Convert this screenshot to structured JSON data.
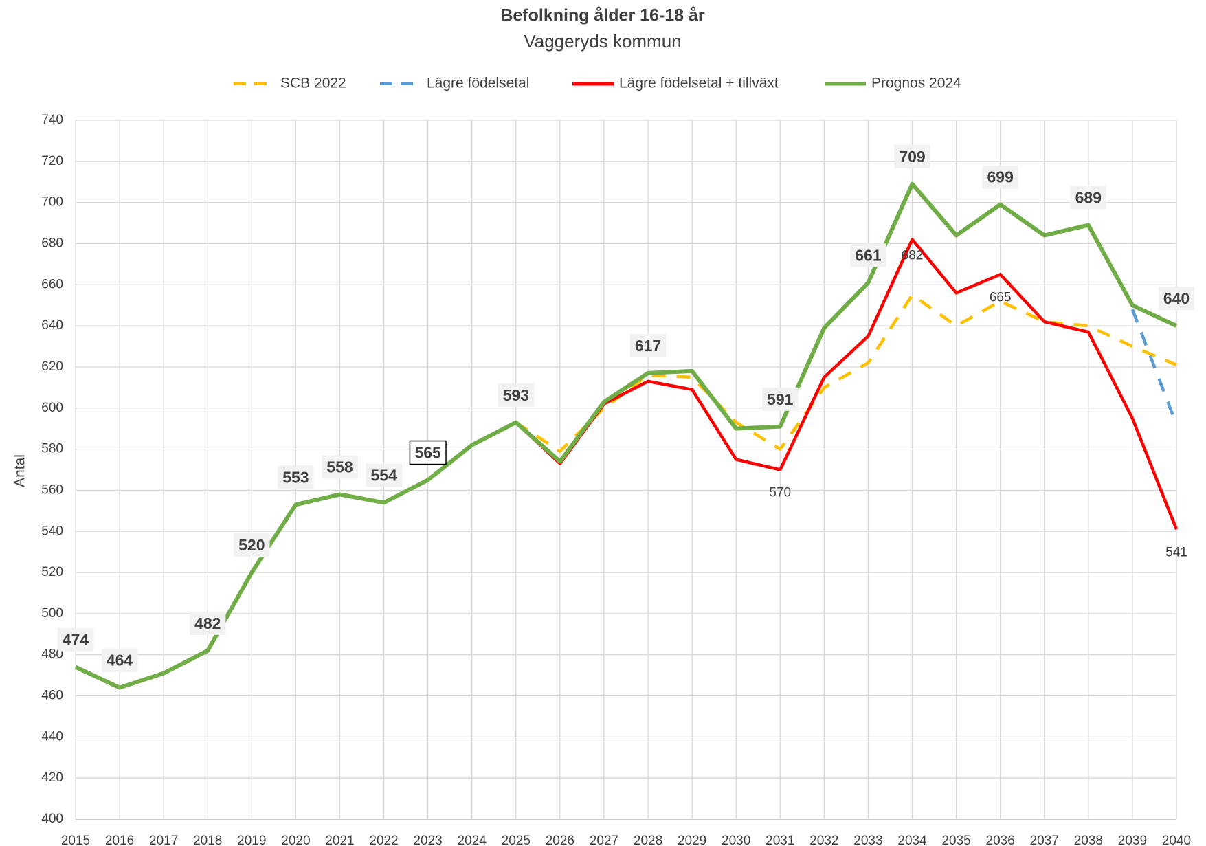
{
  "chart_data": {
    "type": "line",
    "title": "Befolkning ålder 16-18 år",
    "subtitle": "Vaggeryds kommun",
    "y_label": "Antal",
    "categories": [
      "2015",
      "2016",
      "2017",
      "2018",
      "2019",
      "2020",
      "2021",
      "2022",
      "2023",
      "2024",
      "2025",
      "2026",
      "2027",
      "2028",
      "2029",
      "2030",
      "2031",
      "2032",
      "2033",
      "2034",
      "2035",
      "2036",
      "2037",
      "2038",
      "2039",
      "2040"
    ],
    "ylim": [
      400,
      740
    ],
    "yticks": [
      400,
      420,
      440,
      460,
      480,
      500,
      520,
      540,
      560,
      580,
      600,
      620,
      640,
      660,
      680,
      700,
      720,
      740
    ],
    "grid": true,
    "legend": "top",
    "series": [
      {
        "name": "SCB 2022",
        "color": "#ffc000",
        "dashed": true,
        "values": [
          null,
          null,
          null,
          null,
          null,
          null,
          null,
          null,
          null,
          582,
          593,
          579,
          600,
          616,
          615,
          593,
          580,
          610,
          622,
          655,
          640,
          652,
          642,
          640,
          630,
          621
        ]
      },
      {
        "name": "Lägre födelsetal",
        "color": "#5b9bd5",
        "dashed": true,
        "values": [
          null,
          null,
          null,
          null,
          null,
          null,
          null,
          null,
          null,
          null,
          null,
          null,
          null,
          null,
          null,
          null,
          null,
          null,
          null,
          null,
          null,
          null,
          null,
          null,
          648,
          592
        ]
      },
      {
        "name": "Lägre födelsetal + tillväxt",
        "color": "#ff0000",
        "dashed": false,
        "values": [
          null,
          null,
          null,
          null,
          null,
          null,
          null,
          null,
          null,
          582,
          593,
          573,
          602,
          613,
          609,
          575,
          570,
          615,
          635,
          682,
          656,
          665,
          642,
          637,
          595,
          541
        ],
        "value_labels": [
          null,
          null,
          null,
          null,
          null,
          null,
          null,
          null,
          null,
          null,
          null,
          null,
          null,
          null,
          null,
          null,
          "570",
          null,
          null,
          "682",
          null,
          "665",
          null,
          null,
          null,
          "541"
        ]
      },
      {
        "name": "Prognos 2024",
        "color": "#70ad47",
        "dashed": false,
        "values": [
          474,
          464,
          471,
          482,
          520,
          553,
          558,
          554,
          565,
          582,
          593,
          574,
          603,
          617,
          618,
          590,
          591,
          639,
          661,
          709,
          684,
          699,
          684,
          689,
          650,
          640
        ],
        "value_labels": [
          "474",
          "464",
          null,
          "482",
          "520",
          "553",
          "558",
          "554",
          "565",
          null,
          "593",
          null,
          null,
          "617",
          null,
          null,
          "591",
          null,
          "661",
          "709",
          null,
          "699",
          null,
          "689",
          null,
          "640"
        ]
      }
    ]
  }
}
